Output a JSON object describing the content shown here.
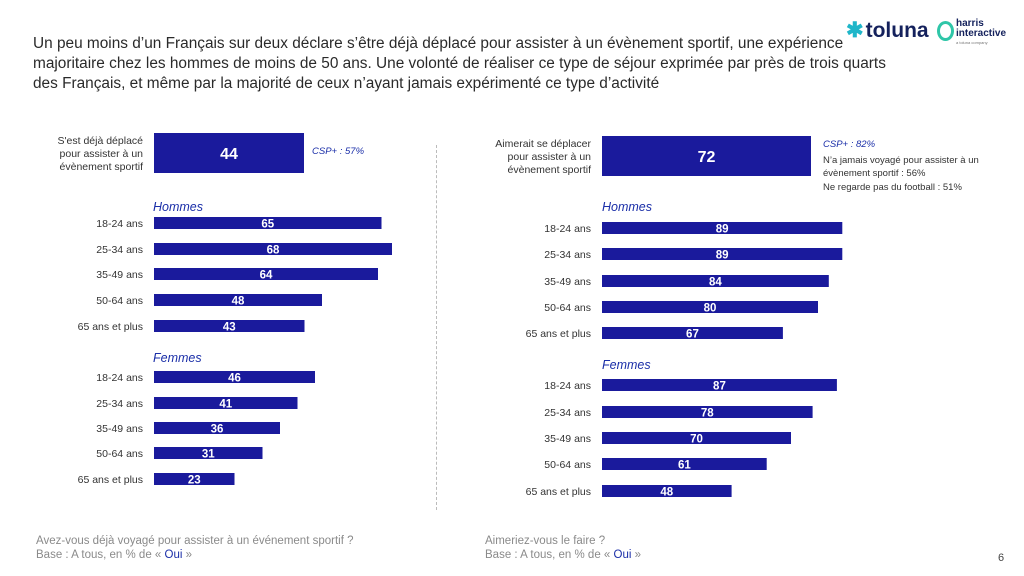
{
  "title": "Un peu moins d’un Français sur deux déclare s’être déjà déplacé pour assister à un évènement sportif, une expérience majoritaire chez les hommes de moins de 50 ans. Une volonté de réaliser ce type de séjour exprimée par près de trois quarts des Français, et même par la majorité de ceux n’ayant jamais expérimenté ce type d’activité",
  "logo": {
    "brand": "toluna",
    "partner_line1": "harris",
    "partner_line2": "interactive",
    "partner_sub": "a toluna company"
  },
  "colors": {
    "bar": "#1a1a9c",
    "accent_text": "#1a2ea8",
    "bar_label": "#ffffff"
  },
  "chart_data": [
    {
      "type": "bar",
      "orientation": "horizontal",
      "total": {
        "label": "S'est déjà déplacé pour assister à un évènement sportif",
        "value": 44
      },
      "groups": [
        {
          "name": "Hommes",
          "categories": [
            "18-24 ans",
            "25-34 ans",
            "35-49 ans",
            "50-64 ans",
            "65 ans et plus"
          ],
          "values": [
            65,
            68,
            64,
            48,
            43
          ]
        },
        {
          "name": "Femmes",
          "categories": [
            "18-24 ans",
            "25-34 ans",
            "35-49 ans",
            "50-64 ans",
            "65 ans et plus"
          ],
          "values": [
            46,
            41,
            36,
            31,
            23
          ]
        }
      ],
      "annotations": [
        "CSP+ : 57%"
      ],
      "footer": {
        "question": "Avez-vous déjà voyagé pour assister à un événement sportif ?",
        "base_prefix": "Base : A tous, en % de « ",
        "base_value": "Oui",
        "base_suffix": " »"
      }
    },
    {
      "type": "bar",
      "orientation": "horizontal",
      "total": {
        "label": "Aimerait se déplacer pour assister à un évènement sportif",
        "value": 72
      },
      "groups": [
        {
          "name": "Hommes",
          "categories": [
            "18-24 ans",
            "25-34 ans",
            "35-49 ans",
            "50-64 ans",
            "65 ans et plus"
          ],
          "values": [
            89,
            89,
            84,
            80,
            67
          ]
        },
        {
          "name": "Femmes",
          "categories": [
            "18-24 ans",
            "25-34 ans",
            "35-49 ans",
            "50-64 ans",
            "65 ans et plus"
          ],
          "values": [
            87,
            78,
            70,
            61,
            48
          ]
        }
      ],
      "annotations": [
        "CSP+ : 82%",
        "N’a jamais voyagé pour assister à un évènement sportif : 56%",
        "Ne regarde pas du football : 51%"
      ],
      "footer": {
        "question": "Aimeriez-vous le faire ?",
        "base_prefix": "Base : A tous, en % de « ",
        "base_value": "Oui",
        "base_suffix": " »"
      }
    }
  ],
  "page_number": "6"
}
